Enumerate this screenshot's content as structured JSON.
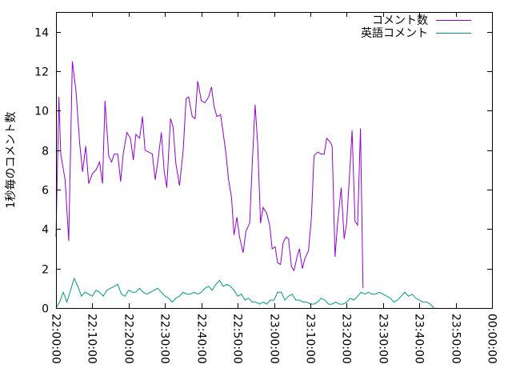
{
  "chart_data": {
    "type": "line",
    "title": "",
    "xlabel": "",
    "ylabel": "1秒毎のコメント数",
    "xlim_minutes": [
      0,
      120
    ],
    "ylim": [
      0,
      15
    ],
    "x_ticks": [
      {
        "label": "22:00:00",
        "minute": 0
      },
      {
        "label": "22:10:00",
        "minute": 10
      },
      {
        "label": "22:20:00",
        "minute": 20
      },
      {
        "label": "22:30:00",
        "minute": 30
      },
      {
        "label": "22:40:00",
        "minute": 40
      },
      {
        "label": "22:50:00",
        "minute": 50
      },
      {
        "label": "23:00:00",
        "minute": 60
      },
      {
        "label": "23:10:00",
        "minute": 70
      },
      {
        "label": "23:20:00",
        "minute": 80
      },
      {
        "label": "23:30:00",
        "minute": 90
      },
      {
        "label": "23:40:00",
        "minute": 100
      },
      {
        "label": "23:50:00",
        "minute": 110
      },
      {
        "label": "00:00:00",
        "minute": 120
      }
    ],
    "y_ticks": [
      {
        "label": "0",
        "value": 0
      },
      {
        "label": "2",
        "value": 2
      },
      {
        "label": "4",
        "value": 4
      },
      {
        "label": "6",
        "value": 6
      },
      {
        "label": "8",
        "value": 8
      },
      {
        "label": "10",
        "value": 10
      },
      {
        "label": "12",
        "value": 12
      },
      {
        "label": "14",
        "value": 14
      }
    ],
    "grid": false,
    "legend_position": "top-right",
    "series": [
      {
        "name": "コメント数",
        "color": "#9400d3",
        "points": [
          [
            0.0,
            3.6
          ],
          [
            0.8,
            10.7
          ],
          [
            1.3,
            7.8
          ],
          [
            2.5,
            6.5
          ],
          [
            3.5,
            3.4
          ],
          [
            4.5,
            12.5
          ],
          [
            5.5,
            11.0
          ],
          [
            6.5,
            8.4
          ],
          [
            7.3,
            6.9
          ],
          [
            8.2,
            8.2
          ],
          [
            9.0,
            6.3
          ],
          [
            10.0,
            6.8
          ],
          [
            11.0,
            7.0
          ],
          [
            12.0,
            7.4
          ],
          [
            12.8,
            6.3
          ],
          [
            13.5,
            10.5
          ],
          [
            14.5,
            7.7
          ],
          [
            15.3,
            7.4
          ],
          [
            16.0,
            7.8
          ],
          [
            17.0,
            7.8
          ],
          [
            17.8,
            6.4
          ],
          [
            18.5,
            7.8
          ],
          [
            19.5,
            8.9
          ],
          [
            20.5,
            8.6
          ],
          [
            21.3,
            7.5
          ],
          [
            22.0,
            8.8
          ],
          [
            23.0,
            8.6
          ],
          [
            23.8,
            9.7
          ],
          [
            24.5,
            8.0
          ],
          [
            25.5,
            7.9
          ],
          [
            26.5,
            7.8
          ],
          [
            27.3,
            6.5
          ],
          [
            28.0,
            7.4
          ],
          [
            29.0,
            8.9
          ],
          [
            29.8,
            6.9
          ],
          [
            30.5,
            6.1
          ],
          [
            31.5,
            9.6
          ],
          [
            32.2,
            9.2
          ],
          [
            33.0,
            7.3
          ],
          [
            34.0,
            6.2
          ],
          [
            35.0,
            8.0
          ],
          [
            35.8,
            10.6
          ],
          [
            36.5,
            10.7
          ],
          [
            37.5,
            9.7
          ],
          [
            38.3,
            9.6
          ],
          [
            39.0,
            11.5
          ],
          [
            40.0,
            10.5
          ],
          [
            41.0,
            10.4
          ],
          [
            42.0,
            10.7
          ],
          [
            42.8,
            11.2
          ],
          [
            43.5,
            10.2
          ],
          [
            44.3,
            9.7
          ],
          [
            45.3,
            9.8
          ],
          [
            46.0,
            8.9
          ],
          [
            46.8,
            7.8
          ],
          [
            47.5,
            6.5
          ],
          [
            48.3,
            5.6
          ],
          [
            49.0,
            3.7
          ],
          [
            49.8,
            4.6
          ],
          [
            50.5,
            3.6
          ],
          [
            51.5,
            2.8
          ],
          [
            52.3,
            3.9
          ],
          [
            53.3,
            4.3
          ],
          [
            54.0,
            7.3
          ],
          [
            54.8,
            10.3
          ],
          [
            55.5,
            8.3
          ],
          [
            56.3,
            4.3
          ],
          [
            57.0,
            5.1
          ],
          [
            58.0,
            4.8
          ],
          [
            58.8,
            4.2
          ],
          [
            59.5,
            3.0
          ],
          [
            60.3,
            3.1
          ],
          [
            61.0,
            2.3
          ],
          [
            61.8,
            2.2
          ],
          [
            62.5,
            3.3
          ],
          [
            63.3,
            3.6
          ],
          [
            64.0,
            3.5
          ],
          [
            64.8,
            2.1
          ],
          [
            65.5,
            1.9
          ],
          [
            66.5,
            2.7
          ],
          [
            67.0,
            3.0
          ],
          [
            67.8,
            2.0
          ],
          [
            68.5,
            2.5
          ],
          [
            69.5,
            2.9
          ],
          [
            70.3,
            4.6
          ],
          [
            71.0,
            7.7
          ],
          [
            72.0,
            7.9
          ],
          [
            73.0,
            7.8
          ],
          [
            73.8,
            7.8
          ],
          [
            74.5,
            8.6
          ],
          [
            75.5,
            8.4
          ],
          [
            76.0,
            8.2
          ],
          [
            76.8,
            2.6
          ],
          [
            77.5,
            4.3
          ],
          [
            78.5,
            6.1
          ],
          [
            79.3,
            3.5
          ],
          [
            80.0,
            4.3
          ],
          [
            80.8,
            6.8
          ],
          [
            81.5,
            9.0
          ],
          [
            82.3,
            4.4
          ],
          [
            83.0,
            4.2
          ],
          [
            83.8,
            9.1
          ],
          [
            84.5,
            1.0
          ]
        ]
      },
      {
        "name": "英語コメント",
        "color": "#009e73",
        "points": [
          [
            0.0,
            0.0
          ],
          [
            1.0,
            0.3
          ],
          [
            2.0,
            0.8
          ],
          [
            3.0,
            0.3
          ],
          [
            4.0,
            0.9
          ],
          [
            5.0,
            1.5
          ],
          [
            6.0,
            1.1
          ],
          [
            7.0,
            0.6
          ],
          [
            8.0,
            0.8
          ],
          [
            9.0,
            0.7
          ],
          [
            10.0,
            0.6
          ],
          [
            11.0,
            0.9
          ],
          [
            12.0,
            0.8
          ],
          [
            13.0,
            0.6
          ],
          [
            14.0,
            0.9
          ],
          [
            15.0,
            1.0
          ],
          [
            16.0,
            1.1
          ],
          [
            17.0,
            1.2
          ],
          [
            18.0,
            0.7
          ],
          [
            19.0,
            0.6
          ],
          [
            20.0,
            0.9
          ],
          [
            21.0,
            0.8
          ],
          [
            22.0,
            0.8
          ],
          [
            23.0,
            1.0
          ],
          [
            24.0,
            0.8
          ],
          [
            25.0,
            0.7
          ],
          [
            26.0,
            0.8
          ],
          [
            27.0,
            0.9
          ],
          [
            28.0,
            1.0
          ],
          [
            29.0,
            0.8
          ],
          [
            30.0,
            0.6
          ],
          [
            31.0,
            0.5
          ],
          [
            32.0,
            0.3
          ],
          [
            33.0,
            0.5
          ],
          [
            34.0,
            0.6
          ],
          [
            35.0,
            0.8
          ],
          [
            36.0,
            0.7
          ],
          [
            37.0,
            0.7
          ],
          [
            38.0,
            0.8
          ],
          [
            39.0,
            0.7
          ],
          [
            40.0,
            0.8
          ],
          [
            41.0,
            1.0
          ],
          [
            42.0,
            1.1
          ],
          [
            43.0,
            0.9
          ],
          [
            44.0,
            1.2
          ],
          [
            45.0,
            1.4
          ],
          [
            46.0,
            1.1
          ],
          [
            47.0,
            1.2
          ],
          [
            48.0,
            1.1
          ],
          [
            49.0,
            0.9
          ],
          [
            50.0,
            0.6
          ],
          [
            51.0,
            0.7
          ],
          [
            52.0,
            0.4
          ],
          [
            53.0,
            0.5
          ],
          [
            54.0,
            0.3
          ],
          [
            55.0,
            0.3
          ],
          [
            56.0,
            0.2
          ],
          [
            57.0,
            0.3
          ],
          [
            58.0,
            0.2
          ],
          [
            59.0,
            0.4
          ],
          [
            60.0,
            0.4
          ],
          [
            61.0,
            0.8
          ],
          [
            62.0,
            0.8
          ],
          [
            63.0,
            0.4
          ],
          [
            64.0,
            0.6
          ],
          [
            65.0,
            0.7
          ],
          [
            66.0,
            0.4
          ],
          [
            67.0,
            0.4
          ],
          [
            68.0,
            0.3
          ],
          [
            69.0,
            0.3
          ],
          [
            70.0,
            0.2
          ],
          [
            71.0,
            0.2
          ],
          [
            72.0,
            0.3
          ],
          [
            73.0,
            0.5
          ],
          [
            74.0,
            0.4
          ],
          [
            75.0,
            0.2
          ],
          [
            76.0,
            0.2
          ],
          [
            77.0,
            0.3
          ],
          [
            78.0,
            0.2
          ],
          [
            79.0,
            0.2
          ],
          [
            80.0,
            0.3
          ],
          [
            81.0,
            0.5
          ],
          [
            82.0,
            0.4
          ],
          [
            83.0,
            0.6
          ],
          [
            84.0,
            0.8
          ],
          [
            85.0,
            0.7
          ],
          [
            86.0,
            0.8
          ],
          [
            87.0,
            0.7
          ],
          [
            88.0,
            0.7
          ],
          [
            89.0,
            0.8
          ],
          [
            90.0,
            0.7
          ],
          [
            91.0,
            0.6
          ],
          [
            92.0,
            0.5
          ],
          [
            93.0,
            0.3
          ],
          [
            94.0,
            0.4
          ],
          [
            95.0,
            0.6
          ],
          [
            96.0,
            0.8
          ],
          [
            97.0,
            0.6
          ],
          [
            98.0,
            0.7
          ],
          [
            99.0,
            0.5
          ],
          [
            100.0,
            0.4
          ],
          [
            101.0,
            0.3
          ],
          [
            102.0,
            0.3
          ],
          [
            103.0,
            0.2
          ],
          [
            104.0,
            0.0
          ]
        ]
      }
    ]
  }
}
